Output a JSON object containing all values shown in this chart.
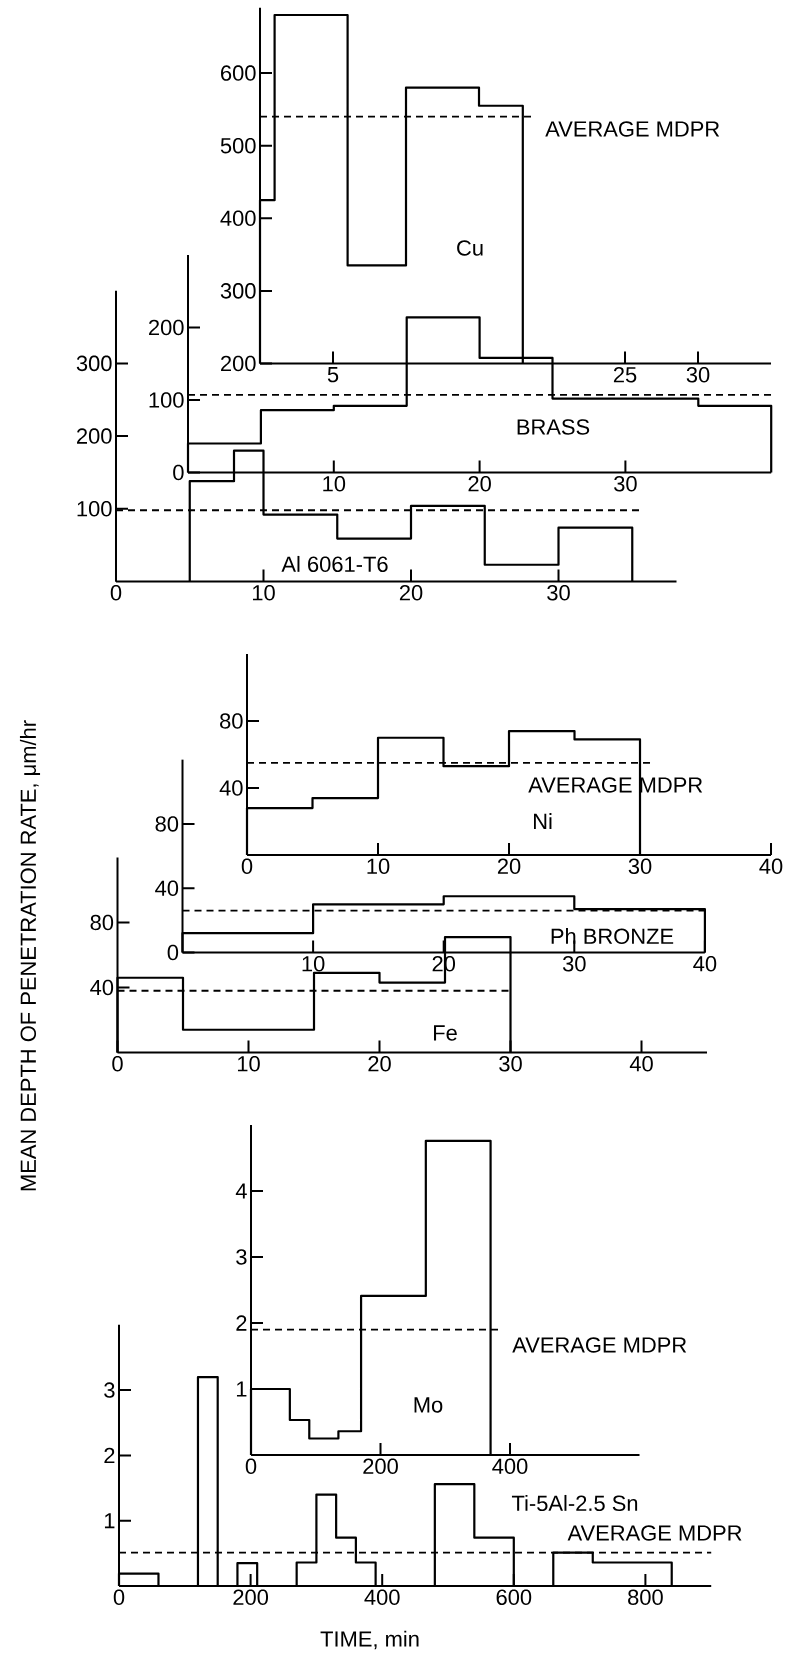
{
  "chart_data": [
    {
      "type": "histogram",
      "bins": [
        0,
        1,
        6,
        10,
        15,
        18
      ],
      "values": [
        425,
        680,
        335,
        580,
        555
      ],
      "color": "#000000",
      "xlim": [
        0,
        35
      ],
      "ylim": [
        200,
        690
      ],
      "xticks": [
        5,
        25,
        30
      ],
      "yticks": [
        200,
        300,
        400,
        500,
        600
      ],
      "ref_lines": [
        {
          "axis": "y",
          "value": 540,
          "label": "AVERAGE MDPR",
          "line_style": "dashed"
        }
      ],
      "annotations": [
        "Cu"
      ]
    },
    {
      "type": "histogram",
      "bins": [
        0,
        5,
        10,
        15,
        20,
        25,
        35,
        40
      ],
      "values": [
        40,
        86,
        92,
        214,
        158,
        102,
        92
      ],
      "color": "#000000",
      "xlim": [
        0,
        40
      ],
      "ylim": [
        0,
        300
      ],
      "xticks": [
        10,
        20,
        30
      ],
      "yticks": [
        0,
        100,
        200
      ],
      "ref_lines": [
        {
          "axis": "y",
          "value": 107,
          "line_style": "dashed"
        }
      ],
      "annotations": [
        "BRASS"
      ]
    },
    {
      "type": "histogram",
      "bins": [
        5,
        8,
        10,
        15,
        20,
        25,
        30,
        35
      ],
      "values": [
        138,
        180,
        92,
        59,
        104,
        23,
        74
      ],
      "color": "#000000",
      "xlim": [
        0,
        38
      ],
      "ylim": [
        0,
        400
      ],
      "xticks": [
        0,
        10,
        20,
        30
      ],
      "yticks": [
        100,
        200,
        300
      ],
      "ref_lines": [
        {
          "axis": "y",
          "value": 98,
          "line_style": "dashed"
        }
      ],
      "annotations": [
        "Al 6061-T6"
      ]
    },
    {
      "type": "histogram",
      "bins": [
        0,
        5,
        10,
        15,
        20,
        25,
        30
      ],
      "values": [
        28,
        34,
        70,
        53,
        74,
        69
      ],
      "color": "#000000",
      "xlim": [
        0,
        40
      ],
      "ylim": [
        0,
        120
      ],
      "xticks": [
        0,
        10,
        20,
        30,
        40
      ],
      "yticks": [
        40,
        80
      ],
      "ref_lines": [
        {
          "axis": "y",
          "value": 55,
          "label": "AVERAGE MDPR",
          "line_style": "dashed"
        }
      ],
      "annotations": [
        "Ni"
      ]
    },
    {
      "type": "histogram",
      "bins": [
        0,
        10,
        20,
        30,
        40
      ],
      "values": [
        12,
        30,
        35,
        27
      ],
      "color": "#000000",
      "xlim": [
        0,
        40
      ],
      "ylim": [
        0,
        120
      ],
      "xticks": [
        10,
        20,
        30,
        40
      ],
      "yticks": [
        0,
        40,
        80
      ],
      "ref_lines": [
        {
          "axis": "y",
          "value": 26,
          "line_style": "dashed"
        }
      ],
      "annotations": [
        "Ph BRONZE"
      ]
    },
    {
      "type": "histogram",
      "bins": [
        0,
        5,
        15,
        20,
        25,
        30
      ],
      "values": [
        46,
        14,
        49,
        43,
        71
      ],
      "color": "#000000",
      "xlim": [
        0,
        45
      ],
      "ylim": [
        0,
        120
      ],
      "xticks": [
        0,
        10,
        20,
        30,
        40
      ],
      "yticks": [
        40,
        80
      ],
      "ylabel": "MEAN DEPTH OF PENETRATION RATE, μm/hr",
      "ref_lines": [
        {
          "axis": "y",
          "value": 38,
          "line_style": "dashed"
        }
      ],
      "annotations": [
        "Fe"
      ]
    },
    {
      "type": "histogram",
      "bins": [
        0,
        60,
        90,
        135,
        170,
        270,
        370
      ],
      "values": [
        1.0,
        0.53,
        0.25,
        0.36,
        2.41,
        4.76
      ],
      "color": "#000000",
      "xlim": [
        0,
        600
      ],
      "ylim": [
        0,
        5
      ],
      "xticks": [
        0,
        200,
        400
      ],
      "yticks": [
        1,
        2,
        3,
        4
      ],
      "ref_lines": [
        {
          "axis": "y",
          "value": 1.9,
          "label": "AVERAGE MDPR",
          "line_style": "dashed"
        }
      ],
      "annotations": [
        "Mo"
      ]
    },
    {
      "type": "histogram",
      "bins": [
        0,
        60,
        120,
        150,
        180,
        210,
        270,
        300,
        330,
        360,
        390,
        480,
        540,
        600,
        660,
        720,
        840
      ],
      "values": [
        0.19,
        0,
        3.2,
        0,
        0.35,
        0,
        0.36,
        1.4,
        0.74,
        0.36,
        0,
        1.56,
        0.74,
        0,
        0.51,
        0.36
      ],
      "color": "#000000",
      "xlim": [
        0,
        900
      ],
      "ylim": [
        0,
        4
      ],
      "xticks": [
        0,
        200,
        400,
        600,
        800
      ],
      "yticks": [
        1,
        2,
        3
      ],
      "xlabel": "TIME, min",
      "ref_lines": [
        {
          "axis": "y",
          "value": 0.51,
          "label": "AVERAGE MDPR",
          "line_style": "dashed"
        }
      ],
      "annotations": [
        "Ti-5Al-2.5 Sn"
      ]
    }
  ]
}
